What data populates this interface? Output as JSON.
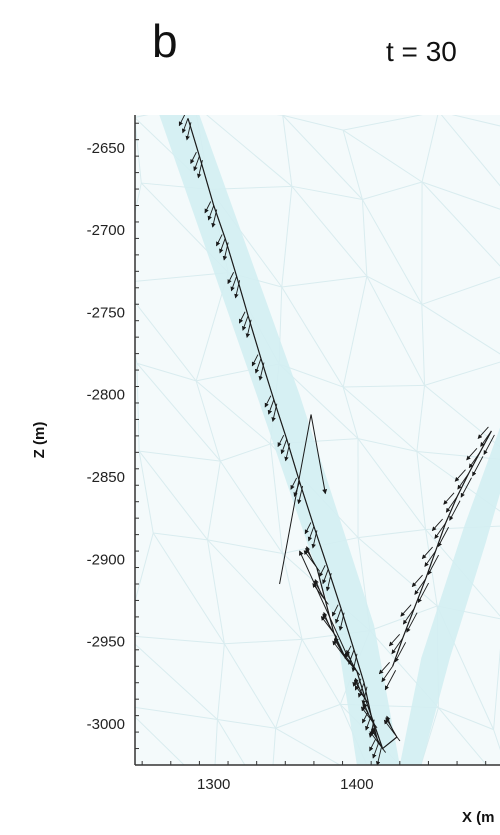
{
  "panel_label": "b",
  "time_label": "t = 30",
  "colors": {
    "mesh": "#d9ecef",
    "highlight_band": "#d3eef2",
    "vectors": "#1a1a1a",
    "axis": "#333333"
  },
  "chart_data": {
    "type": "scatter",
    "title": "t = 30",
    "xlabel": "X (m",
    "ylabel": "Z (m)",
    "xlim": [
      1245,
      1500
    ],
    "ylim": [
      -3025,
      -2630
    ],
    "x_ticks": [
      1300,
      1400
    ],
    "y_ticks": [
      -2650,
      -2700,
      -2750,
      -2800,
      -2850,
      -2900,
      -2950,
      -3000
    ],
    "grid": false,
    "background": "triangular finite-element mesh with highlighted fault band",
    "band": {
      "left_edge": [
        [
          1262,
          -2630
        ],
        [
          1330,
          -2800
        ],
        [
          1385,
          -2940
        ],
        [
          1400,
          -3025
        ]
      ],
      "right_edge": [
        [
          1290,
          -2630
        ],
        [
          1360,
          -2800
        ],
        [
          1412,
          -2940
        ],
        [
          1430,
          -3025
        ]
      ],
      "right_branch_left_edge": [
        [
          1430,
          -3025
        ],
        [
          1445,
          -2960
        ],
        [
          1475,
          -2880
        ],
        [
          1500,
          -2820
        ]
      ],
      "right_branch_right_edge": [
        [
          1445,
          -3025
        ],
        [
          1465,
          -2960
        ],
        [
          1490,
          -2890
        ],
        [
          1500,
          -2860
        ]
      ]
    },
    "series": [
      {
        "points": [
          [
            1282,
            -2632
          ],
          [
            1290,
            -2655
          ],
          [
            1300,
            -2685
          ],
          [
            1308,
            -2705
          ],
          [
            1316,
            -2728
          ],
          [
            1324,
            -2752
          ],
          [
            1333,
            -2778
          ],
          [
            1342,
            -2803
          ],
          [
            1351,
            -2827
          ],
          [
            1360,
            -2853
          ],
          [
            1370,
            -2880
          ],
          [
            1380,
            -2906
          ],
          [
            1389,
            -2930
          ],
          [
            1398,
            -2955
          ],
          [
            1405,
            -2975
          ],
          [
            1410,
            -2995
          ],
          [
            1415,
            -3012
          ]
        ],
        "vector_length": 18,
        "vector_angle_deg": 250
      },
      {
        "points": [
          [
            1372,
            -2905
          ],
          [
            1378,
            -2925
          ],
          [
            1384,
            -2945
          ],
          [
            1392,
            -2960
          ],
          [
            1400,
            -2968
          ],
          [
            1406,
            -2985
          ],
          [
            1412,
            -3000
          ],
          [
            1418,
            -3015
          ],
          [
            1428,
            -3008
          ]
        ],
        "vector_length": 26,
        "vector_angle_deg": 120
      },
      {
        "points": [
          [
            1425,
            -2965
          ],
          [
            1432,
            -2948
          ],
          [
            1440,
            -2930
          ],
          [
            1448,
            -2912
          ],
          [
            1455,
            -2895
          ],
          [
            1462,
            -2878
          ],
          [
            1470,
            -2862
          ],
          [
            1478,
            -2848
          ],
          [
            1486,
            -2835
          ],
          [
            1494,
            -2822
          ]
        ],
        "vector_length": 22,
        "vector_angle_deg": 235
      }
    ],
    "annotations": [
      {
        "polyline": [
          [
            1346,
            -2915
          ],
          [
            1368,
            -2812
          ],
          [
            1378,
            -2860
          ]
        ],
        "kind": "long-arrow"
      },
      {
        "polyline": [
          [
            1393,
            -2958
          ],
          [
            1360,
            -2895
          ]
        ],
        "kind": "long-arrow"
      }
    ]
  }
}
